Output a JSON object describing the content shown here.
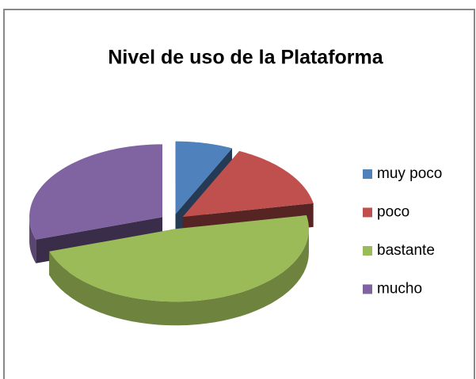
{
  "chart_data": {
    "type": "pie",
    "title": "Nivel de uso de la Plataforma",
    "categories": [
      "muy poco",
      "poco",
      "bastante",
      "mucho"
    ],
    "values": [
      7,
      15,
      48,
      30
    ],
    "colors": [
      "#4f81bd",
      "#c0504d",
      "#9bbb59",
      "#8064a2"
    ],
    "legend": "right"
  }
}
